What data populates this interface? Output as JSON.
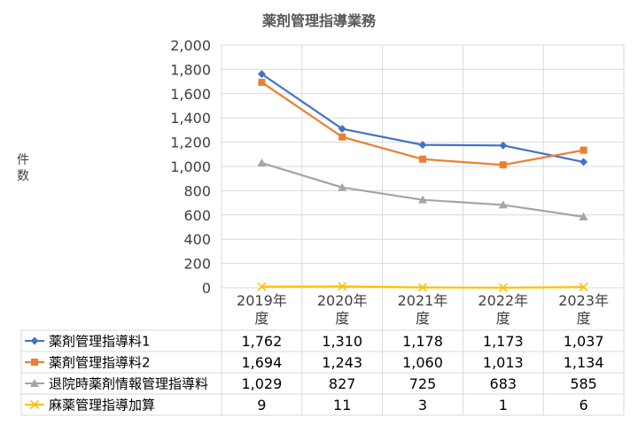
{
  "chart_data": {
    "type": "line",
    "title": "薬剤管理指導業務",
    "ylabel": "件数",
    "xlabel": "",
    "ylim": [
      0,
      2000
    ],
    "ytick_step": 200,
    "ytick_labels": [
      "0",
      "200",
      "400",
      "600",
      "800",
      "1,000",
      "1,200",
      "1,400",
      "1,600",
      "1,800",
      "2,000"
    ],
    "categories": [
      {
        "line1": "2019年",
        "line2": "度"
      },
      {
        "line1": "2020年",
        "line2": "度"
      },
      {
        "line1": "2021年",
        "line2": "度"
      },
      {
        "line1": "2022年",
        "line2": "度"
      },
      {
        "line1": "2023年",
        "line2": "度"
      }
    ],
    "series": [
      {
        "name": "薬剤管理指導料1",
        "values": [
          1762,
          1310,
          1178,
          1173,
          1037
        ],
        "labels": [
          "1,762",
          "1,310",
          "1,178",
          "1,173",
          "1,037"
        ],
        "color": "#4472c4",
        "marker": "diamond"
      },
      {
        "name": "薬剤管理指導料2",
        "values": [
          1694,
          1243,
          1060,
          1013,
          1134
        ],
        "labels": [
          "1,694",
          "1,243",
          "1,060",
          "1,013",
          "1,134"
        ],
        "color": "#ed7d31",
        "marker": "square"
      },
      {
        "name": "退院時薬剤情報管理指導料",
        "values": [
          1029,
          827,
          725,
          683,
          585
        ],
        "labels": [
          "1,029",
          "827",
          "725",
          "683",
          "585"
        ],
        "color": "#a5a5a5",
        "marker": "triangle"
      },
      {
        "name": "麻薬管理指導加算",
        "values": [
          9,
          11,
          3,
          1,
          6
        ],
        "labels": [
          "9",
          "11",
          "3",
          "1",
          "6"
        ],
        "color": "#ffc000",
        "marker": "x"
      }
    ],
    "grid": true,
    "legend": "data-table"
  }
}
